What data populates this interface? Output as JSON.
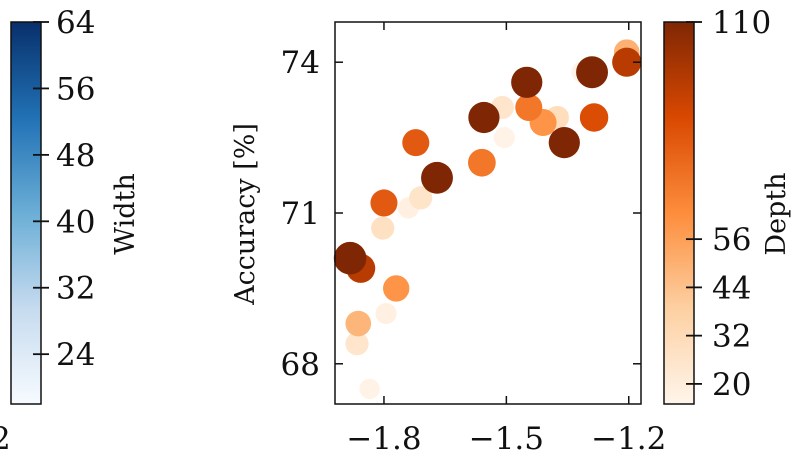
{
  "colors": {
    "width_scale": [
      "#f7fbff",
      "#c6dbef",
      "#6baed6",
      "#2171b5",
      "#08306b"
    ],
    "depth_scale": [
      "#fff5eb",
      "#fdd0a2",
      "#fd8d3c",
      "#d94801",
      "#7f2704"
    ]
  },
  "left_colorbar": {
    "label": "Width",
    "range": [
      18,
      64
    ],
    "ticks": [
      "64",
      "56",
      "48",
      "40",
      "32",
      "24"
    ],
    "tick_values": [
      64,
      56,
      48,
      40,
      32,
      24
    ],
    "clipped_label": "2"
  },
  "right_colorbar": {
    "label": "Depth",
    "range": [
      15,
      110
    ],
    "ticks": [
      "110",
      "56",
      "44",
      "32",
      "20"
    ],
    "tick_values": [
      110,
      56,
      44,
      32,
      20
    ]
  },
  "chart_data": {
    "type": "scatter",
    "title": "",
    "xlabel": "",
    "ylabel": "Accuracy [%]",
    "xlim": [
      -1.92,
      -1.17
    ],
    "ylim": [
      67.2,
      74.8
    ],
    "xticks": [
      "−1.8",
      "−1.5",
      "−1.2"
    ],
    "xtick_values": [
      -1.8,
      -1.5,
      -1.2
    ],
    "yticks": [
      "74",
      "71",
      "68"
    ],
    "ytick_values": [
      74,
      71,
      68
    ],
    "grid": false,
    "color_encodes": "Depth",
    "size_encodes": "Width",
    "points": [
      {
        "x": -1.883,
        "y": 70.1,
        "depth": 110,
        "width": 60
      },
      {
        "x": -1.857,
        "y": 69.9,
        "depth": 95,
        "width": 50
      },
      {
        "x": -1.863,
        "y": 68.8,
        "depth": 48,
        "width": 40
      },
      {
        "x": -1.866,
        "y": 68.4,
        "depth": 25,
        "width": 33
      },
      {
        "x": -1.835,
        "y": 67.5,
        "depth": 16,
        "width": 25
      },
      {
        "x": -1.8,
        "y": 71.2,
        "depth": 80,
        "width": 44
      },
      {
        "x": -1.803,
        "y": 70.7,
        "depth": 28,
        "width": 33
      },
      {
        "x": -1.795,
        "y": 69.0,
        "depth": 18,
        "width": 27
      },
      {
        "x": -1.77,
        "y": 69.5,
        "depth": 60,
        "width": 42
      },
      {
        "x": -1.74,
        "y": 71.1,
        "depth": 18,
        "width": 27
      },
      {
        "x": -1.722,
        "y": 72.4,
        "depth": 80,
        "width": 44
      },
      {
        "x": -1.71,
        "y": 71.3,
        "depth": 26,
        "width": 33
      },
      {
        "x": -1.67,
        "y": 71.7,
        "depth": 110,
        "width": 58
      },
      {
        "x": -1.56,
        "y": 72.0,
        "depth": 70,
        "width": 46
      },
      {
        "x": -1.555,
        "y": 72.9,
        "depth": 110,
        "width": 56
      },
      {
        "x": -1.545,
        "y": 72.9,
        "depth": 28,
        "width": 33
      },
      {
        "x": -1.51,
        "y": 73.1,
        "depth": 25,
        "width": 33
      },
      {
        "x": -1.505,
        "y": 72.5,
        "depth": 16,
        "width": 27
      },
      {
        "x": -1.45,
        "y": 73.6,
        "depth": 110,
        "width": 56
      },
      {
        "x": -1.445,
        "y": 73.1,
        "depth": 70,
        "width": 44
      },
      {
        "x": -1.41,
        "y": 72.8,
        "depth": 60,
        "width": 44
      },
      {
        "x": -1.375,
        "y": 72.9,
        "depth": 30,
        "width": 33
      },
      {
        "x": -1.37,
        "y": 72.4,
        "depth": 18,
        "width": 27
      },
      {
        "x": -1.358,
        "y": 72.4,
        "depth": 110,
        "width": 56
      },
      {
        "x": -1.315,
        "y": 73.8,
        "depth": 16,
        "width": 27
      },
      {
        "x": -1.29,
        "y": 73.8,
        "depth": 110,
        "width": 58
      },
      {
        "x": -1.285,
        "y": 72.9,
        "depth": 85,
        "width": 48
      },
      {
        "x": -1.205,
        "y": 74.2,
        "depth": 50,
        "width": 40
      },
      {
        "x": -1.205,
        "y": 74.0,
        "depth": 95,
        "width": 50
      }
    ]
  }
}
